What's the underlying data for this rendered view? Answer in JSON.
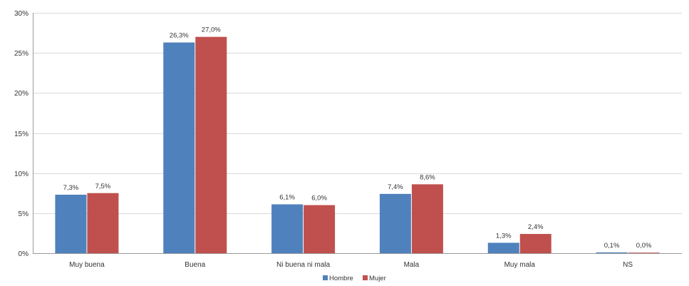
{
  "chart_data": {
    "type": "bar",
    "categories": [
      "Muy buena",
      "Buena",
      "Ni buena ni mala",
      "Mala",
      "Muy mala",
      "NS"
    ],
    "series": [
      {
        "name": "Hombre",
        "color": "#4f81bd",
        "values": [
          7.3,
          26.3,
          6.1,
          7.4,
          1.3,
          0.1
        ],
        "labels": [
          "7,3%",
          "26,3%",
          "6,1%",
          "7,4%",
          "1,3%",
          "0,1%"
        ]
      },
      {
        "name": "Mujer",
        "color": "#c0504d",
        "values": [
          7.5,
          27.0,
          6.0,
          8.6,
          2.4,
          0.0
        ],
        "labels": [
          "7,5%",
          "27,0%",
          "6,0%",
          "8,6%",
          "2,4%",
          "0,0%"
        ]
      }
    ],
    "ylim": [
      0,
      30
    ],
    "yticks": [
      0,
      5,
      10,
      15,
      20,
      25,
      30
    ],
    "ytick_labels": [
      "0%",
      "5%",
      "10%",
      "15%",
      "20%",
      "25%",
      "30%"
    ],
    "grid": true,
    "legend": "bottom-center"
  }
}
